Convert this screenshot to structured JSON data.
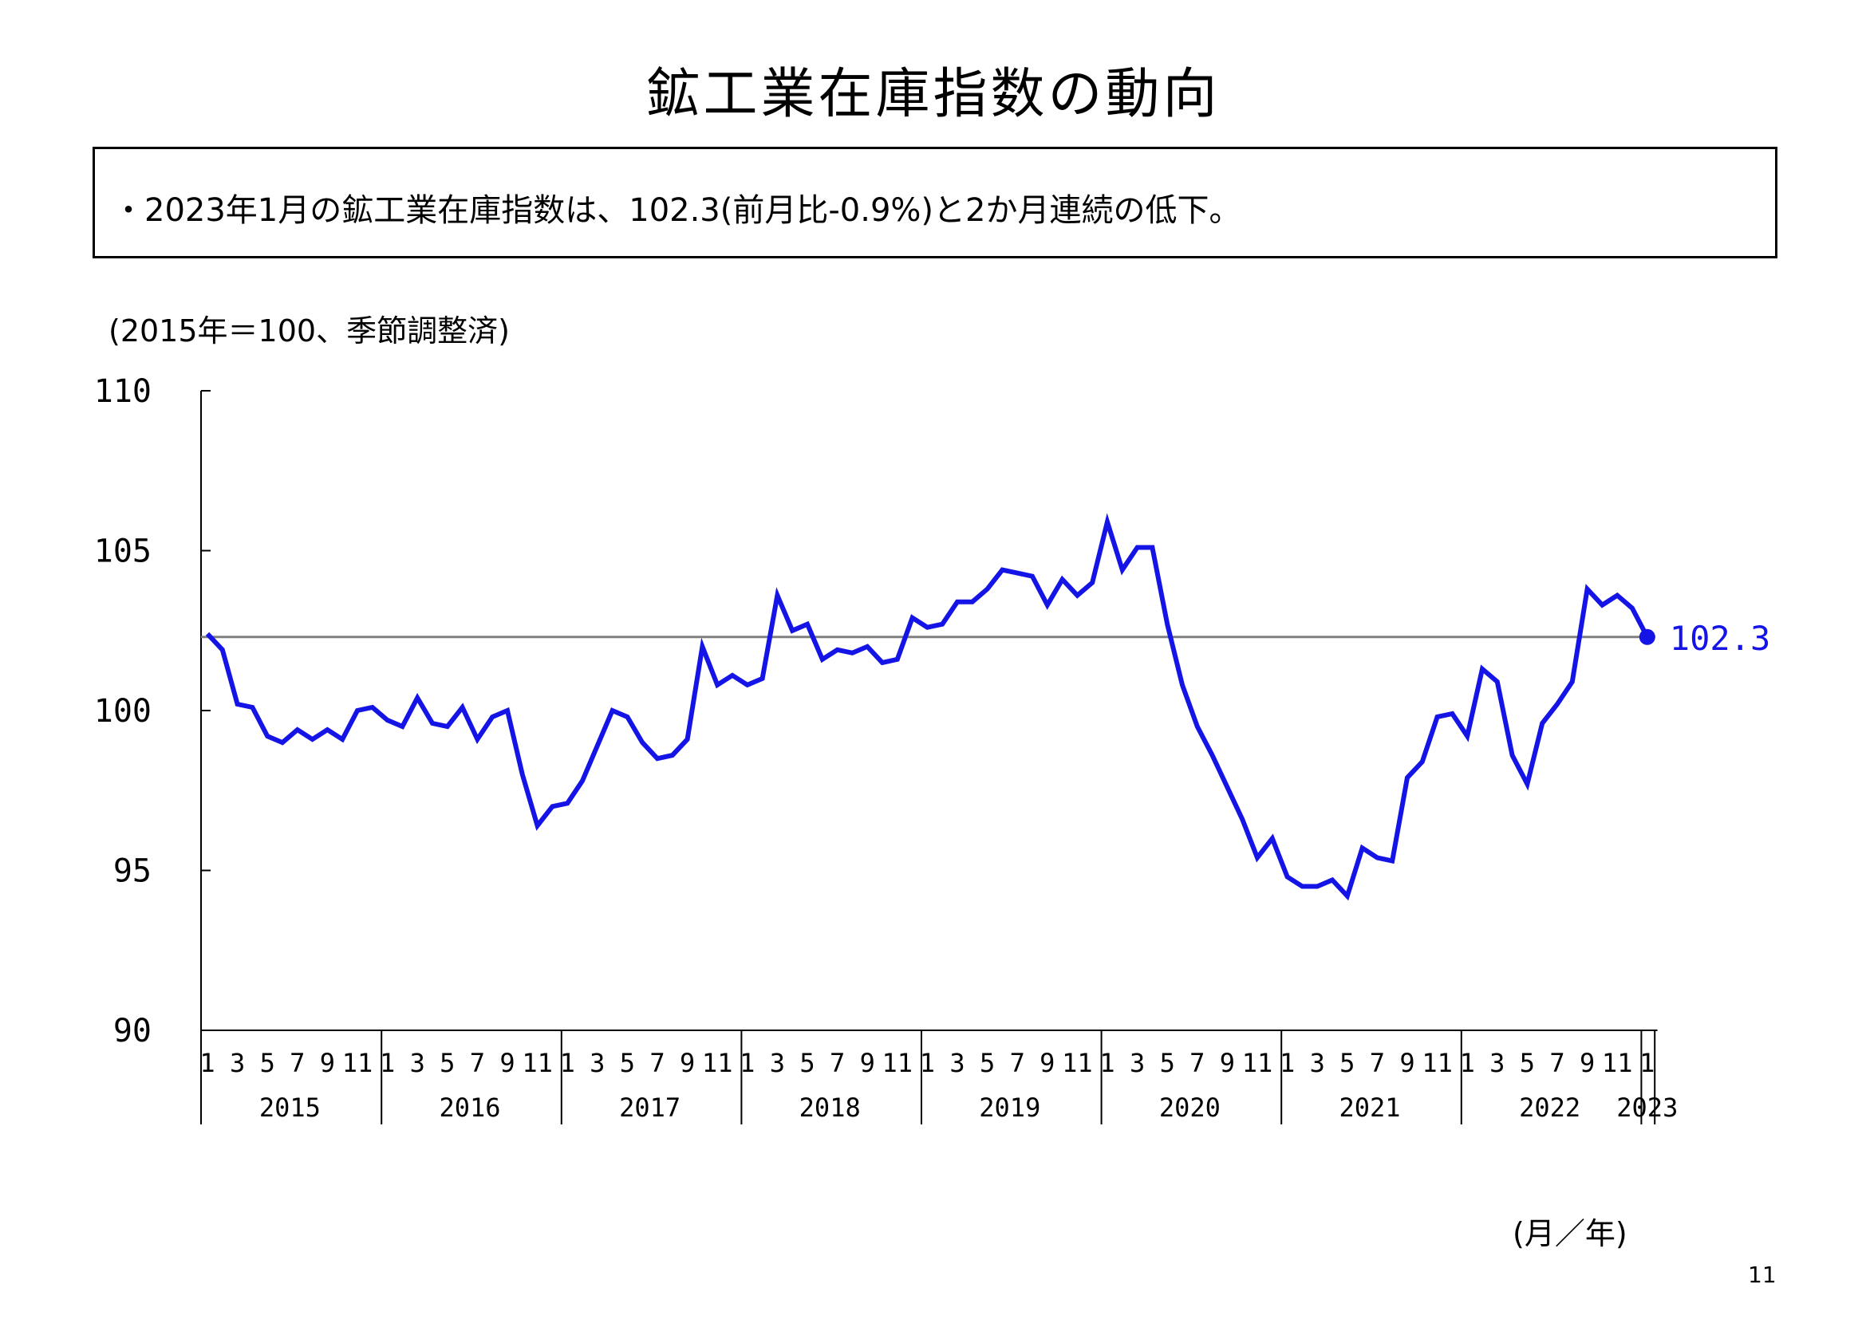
{
  "page": {
    "title": "鉱工業在庫指数の動向",
    "summary": "・2023年1月の鉱工業在庫指数は、102.3(前月比-0.9%)と2か月連続の低下。",
    "unit_note": "(2015年＝100、季節調整済)",
    "x_axis_unit": "(月／年)",
    "page_number": "11"
  },
  "chart_data": {
    "type": "line",
    "y_range": [
      90,
      110
    ],
    "y_ticks": [
      "90",
      "95",
      "100",
      "105",
      "110"
    ],
    "reference_line": 102.3,
    "end_label": "102.3",
    "line_color": "#1414e6",
    "reference_line_color": "#808080",
    "grid": false,
    "month_tick_labels": [
      "1",
      "3",
      "5",
      "7",
      "9",
      "11"
    ],
    "years": [
      "2015",
      "2016",
      "2017",
      "2018",
      "2019",
      "2020",
      "2021",
      "2022",
      "2023"
    ],
    "series": [
      {
        "values": [
          102.4,
          101.9,
          100.2,
          100.1,
          99.2,
          99.0,
          99.4,
          99.1,
          99.4,
          99.1,
          100.0,
          100.1,
          99.7,
          99.5,
          100.4,
          99.6,
          99.5,
          100.1,
          99.1,
          99.8,
          100.0,
          98.0,
          96.4,
          97.0,
          97.1,
          97.8,
          98.9,
          100.0,
          99.8,
          99.0,
          98.5,
          98.6,
          99.1,
          102.0,
          100.8,
          101.1,
          100.8,
          101.0,
          103.6,
          102.5,
          102.7,
          101.6,
          101.9,
          101.8,
          102.0,
          101.5,
          101.6,
          102.9,
          102.6,
          102.7,
          103.4,
          103.4,
          103.8,
          104.4,
          104.3,
          104.2,
          103.3,
          104.1,
          103.6,
          104.0,
          105.9,
          104.4,
          105.1,
          105.1,
          102.7,
          100.8,
          99.5,
          98.6,
          97.6,
          96.6,
          95.4,
          96.0,
          94.8,
          94.5,
          94.5,
          94.7,
          94.2,
          95.7,
          95.4,
          95.3,
          97.9,
          98.4,
          99.8,
          99.9,
          99.2,
          101.3,
          100.9,
          98.6,
          97.7,
          99.6,
          100.2,
          100.9,
          103.8,
          103.3,
          103.6,
          103.2,
          102.3
        ]
      }
    ]
  }
}
